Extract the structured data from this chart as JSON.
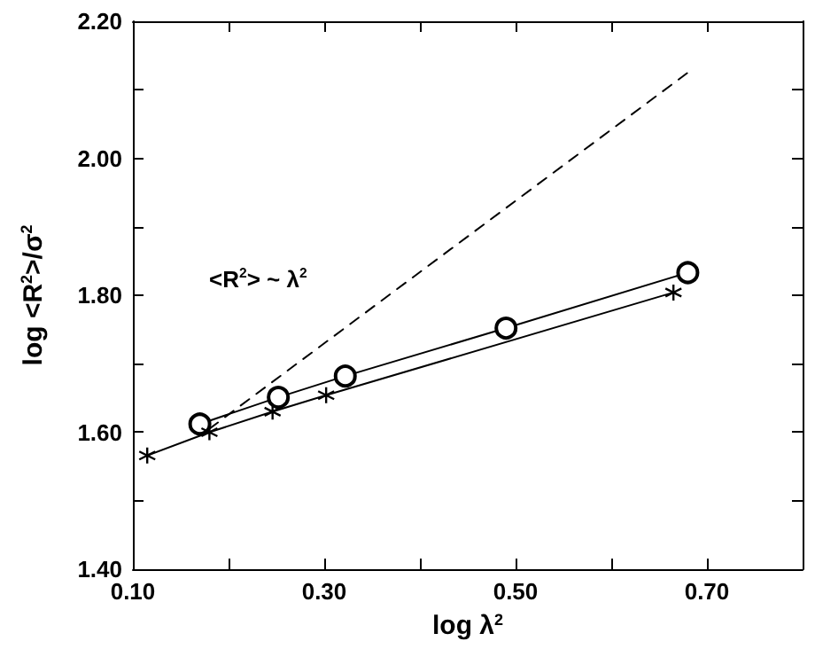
{
  "chart_data": {
    "type": "line",
    "xlabel": "log λ$^{2}$",
    "ylabel": "log <R$^{2}$>/σ$^{2}$",
    "annotations": [
      "<R$^{2}$> ~ λ$^{2}$"
    ],
    "series": [
      {
        "color": "#000000",
        "marker": "circle",
        "line_style": "solid",
        "x": [
          0.17,
          0.252,
          0.322,
          0.49,
          0.68
        ],
        "values": [
          1.612,
          1.651,
          1.682,
          1.752,
          1.833
        ]
      },
      {
        "color": "#000000",
        "marker": "cross",
        "line_style": "solid",
        "x": [
          0.115,
          0.18,
          0.246,
          0.302,
          0.665
        ],
        "values": [
          1.566,
          1.6,
          1.63,
          1.654,
          1.804
        ]
      },
      {
        "color": "#000000",
        "marker": "none",
        "line_style": "dashed",
        "x": [
          0.18,
          0.68
        ],
        "values": [
          1.605,
          2.125
        ]
      }
    ],
    "xlim": [
      0.1,
      0.8
    ],
    "xticks": [
      {
        "value": 0.1,
        "label": "0.10"
      },
      {
        "value": 0.2,
        "label": null
      },
      {
        "value": 0.3,
        "label": "0.30"
      },
      {
        "value": 0.4,
        "label": null
      },
      {
        "value": 0.5,
        "label": "0.50"
      },
      {
        "value": 0.6,
        "label": null
      },
      {
        "value": 0.7,
        "label": "0.70"
      }
    ],
    "ylim": [
      1.4,
      2.2
    ],
    "yticks": [
      {
        "value": 1.4,
        "label": "1.40"
      },
      {
        "value": 1.5,
        "label": null
      },
      {
        "value": 1.6,
        "label": "1.60"
      },
      {
        "value": 1.7,
        "label": null
      },
      {
        "value": 1.8,
        "label": "1.80"
      },
      {
        "value": 1.9,
        "label": null
      },
      {
        "value": 2.0,
        "label": "2.00"
      },
      {
        "value": 2.1,
        "label": null
      },
      {
        "value": 2.2,
        "label": "2.20"
      }
    ],
    "grid": false
  }
}
